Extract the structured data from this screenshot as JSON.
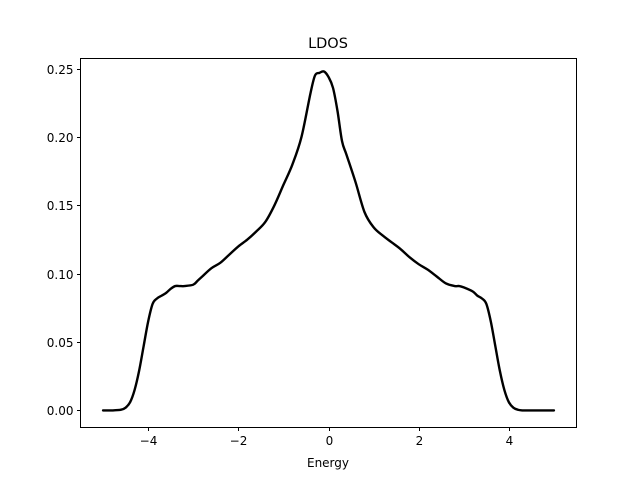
{
  "chart_data": {
    "type": "line",
    "title": "LDOS",
    "xlabel": "Energy",
    "ylabel": "",
    "xlim": [
      -5.5,
      5.5
    ],
    "ylim": [
      -0.0125,
      0.2575
    ],
    "xticks": [
      -4,
      -2,
      0,
      2,
      4
    ],
    "xtick_labels": [
      "−4",
      "−2",
      "0",
      "2",
      "4"
    ],
    "yticks": [
      0.0,
      0.05,
      0.1,
      0.15,
      0.2,
      0.25
    ],
    "ytick_labels": [
      "0.00",
      "0.05",
      "0.10",
      "0.15",
      "0.20",
      "0.25"
    ],
    "grid": false,
    "line_color": "#000000",
    "series": [
      {
        "x": [
          -5.0,
          -4.8,
          -4.6,
          -4.5,
          -4.4,
          -4.3,
          -4.2,
          -4.1,
          -4.0,
          -3.9,
          -3.8,
          -3.7,
          -3.6,
          -3.5,
          -3.4,
          -3.3,
          -3.2,
          -3.0,
          -2.9,
          -2.8,
          -2.6,
          -2.4,
          -2.2,
          -2.0,
          -1.8,
          -1.6,
          -1.4,
          -1.2,
          -1.0,
          -0.8,
          -0.6,
          -0.4,
          -0.3,
          -0.2,
          -0.1,
          0.0,
          0.1,
          0.2,
          0.3,
          0.4,
          0.6,
          0.8,
          1.0,
          1.2,
          1.4,
          1.6,
          1.8,
          2.0,
          2.2,
          2.4,
          2.6,
          2.8,
          2.9,
          3.0,
          3.2,
          3.3,
          3.4,
          3.5,
          3.6,
          3.7,
          3.8,
          3.9,
          4.0,
          4.1,
          4.2,
          4.3,
          4.4,
          4.5,
          4.6,
          4.8,
          5.0
        ],
        "y": [
          0.0,
          0.0,
          0.0005,
          0.002,
          0.006,
          0.015,
          0.029,
          0.047,
          0.065,
          0.078,
          0.082,
          0.084,
          0.086,
          0.089,
          0.091,
          0.091,
          0.091,
          0.092,
          0.095,
          0.098,
          0.104,
          0.108,
          0.114,
          0.12,
          0.125,
          0.131,
          0.138,
          0.15,
          0.165,
          0.18,
          0.2,
          0.232,
          0.245,
          0.247,
          0.248,
          0.244,
          0.236,
          0.219,
          0.197,
          0.187,
          0.167,
          0.145,
          0.134,
          0.128,
          0.123,
          0.118,
          0.112,
          0.107,
          0.103,
          0.098,
          0.093,
          0.091,
          0.091,
          0.09,
          0.087,
          0.084,
          0.082,
          0.078,
          0.065,
          0.047,
          0.029,
          0.015,
          0.006,
          0.002,
          0.0005,
          0.0,
          0.0,
          0.0,
          0.0,
          0.0,
          0.0
        ]
      }
    ]
  }
}
